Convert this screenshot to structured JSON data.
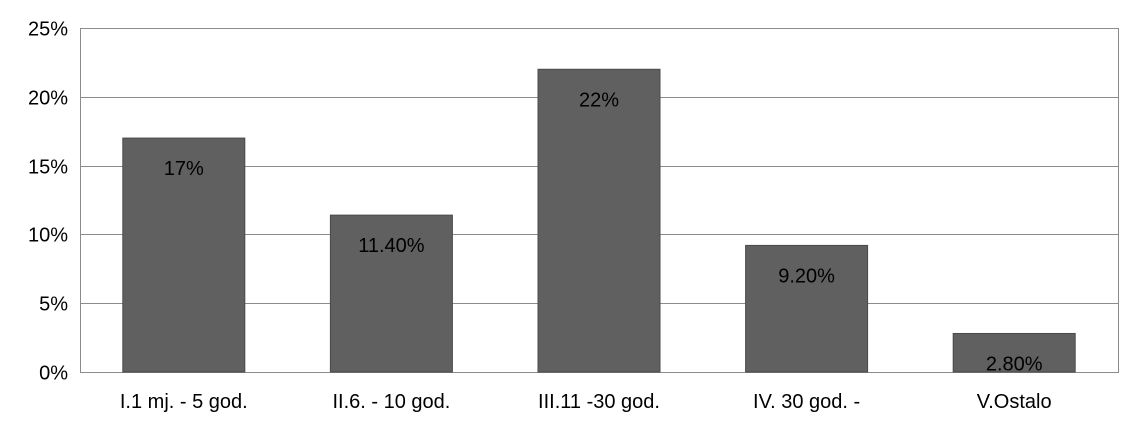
{
  "chart_data": {
    "type": "bar",
    "title": "",
    "xlabel": "",
    "ylabel": "",
    "categories": [
      "I.1 mj. - 5 god.",
      "II.6. - 10 god.",
      "III.11 -30 god.",
      "IV. 30 god. -",
      "V.Ostalo"
    ],
    "values": [
      17,
      11.4,
      22,
      9.2,
      2.8
    ],
    "data_labels": [
      "17%",
      "11.40%",
      "22%",
      "9.20%",
      "2.80%"
    ],
    "ylim": [
      0,
      25
    ],
    "yticks": [
      0,
      5,
      10,
      15,
      20,
      25
    ],
    "ytick_labels": [
      "0%",
      "5%",
      "10%",
      "15%",
      "20%",
      "25%"
    ],
    "grid": true,
    "legend": "none",
    "colors": {
      "bar": "#606060",
      "bar_edge": "#4a4a4a",
      "grid": "#8c8c8c",
      "axis": "#8c8c8c",
      "text": "#000000",
      "background": "#ffffff"
    }
  }
}
